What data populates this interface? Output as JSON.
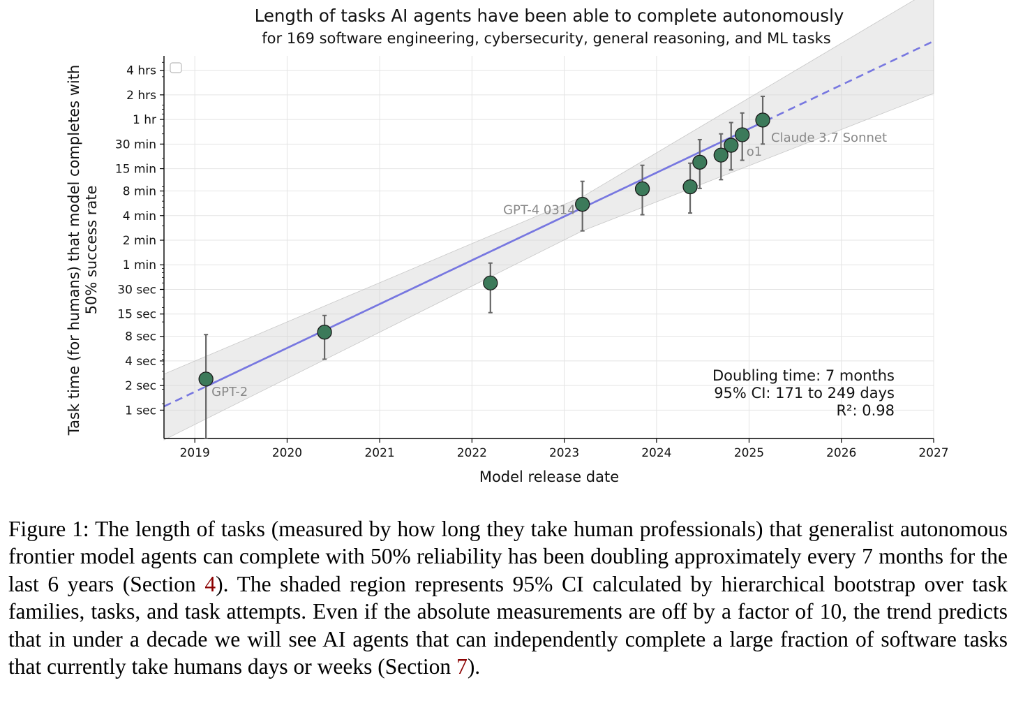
{
  "chart_data": {
    "type": "scatter",
    "title": "Length of tasks AI agents have been able to complete autonomously",
    "subtitle": "for 169 software engineering, cybersecurity, general reasoning, and ML tasks",
    "xlabel": "Model release date",
    "ylabel_line1": "Task time (for humans) that model completes with",
    "ylabel_line2": "50% success rate",
    "y_scale": "log",
    "y_unit": "minutes",
    "xlim": [
      "2018-09-01",
      "2027-01-01"
    ],
    "ylim": [
      0.0075,
      360
    ],
    "grid": true,
    "x_ticks": [
      {
        "value": "2019-01-01",
        "label": "2019"
      },
      {
        "value": "2020-01-01",
        "label": "2020"
      },
      {
        "value": "2021-01-01",
        "label": "2021"
      },
      {
        "value": "2022-01-01",
        "label": "2022"
      },
      {
        "value": "2023-01-01",
        "label": "2023"
      },
      {
        "value": "2024-01-01",
        "label": "2024"
      },
      {
        "value": "2025-01-01",
        "label": "2025"
      },
      {
        "value": "2026-01-01",
        "label": "2026"
      },
      {
        "value": "2027-01-01",
        "label": "2027"
      }
    ],
    "y_ticks": [
      {
        "value": 0.01667,
        "label": "1 sec"
      },
      {
        "value": 0.03333,
        "label": "2 sec"
      },
      {
        "value": 0.06667,
        "label": "4 sec"
      },
      {
        "value": 0.13333,
        "label": "8 sec"
      },
      {
        "value": 0.25,
        "label": "15 sec"
      },
      {
        "value": 0.5,
        "label": "30 sec"
      },
      {
        "value": 1,
        "label": "1 min"
      },
      {
        "value": 2,
        "label": "2 min"
      },
      {
        "value": 4,
        "label": "4 min"
      },
      {
        "value": 8,
        "label": "8 min"
      },
      {
        "value": 15,
        "label": "15 min"
      },
      {
        "value": 30,
        "label": "30 min"
      },
      {
        "value": 60,
        "label": "1 hr"
      },
      {
        "value": 120,
        "label": "2 hrs"
      },
      {
        "value": 240,
        "label": "4 hrs"
      }
    ],
    "points": [
      {
        "date": "2019-02-14",
        "y": 0.04,
        "err_low": 0.0075,
        "err_high": 0.14,
        "label": "GPT-2"
      },
      {
        "date": "2020-05-28",
        "y": 0.15,
        "err_low": 0.07,
        "err_high": 0.24,
        "label": ""
      },
      {
        "date": "2022-03-15",
        "y": 0.6,
        "err_low": 0.26,
        "err_high": 1.05,
        "label": ""
      },
      {
        "date": "2023-03-14",
        "y": 5.5,
        "err_low": 2.6,
        "err_high": 10.5,
        "label": "GPT-4 0314"
      },
      {
        "date": "2023-11-06",
        "y": 8.5,
        "err_low": 4.1,
        "err_high": 16.5,
        "label": ""
      },
      {
        "date": "2024-05-13",
        "y": 9,
        "err_low": 4.3,
        "err_high": 17.5,
        "label": ""
      },
      {
        "date": "2024-06-20",
        "y": 18,
        "err_low": 8.6,
        "err_high": 34,
        "label": ""
      },
      {
        "date": "2024-09-12",
        "y": 22,
        "err_low": 11,
        "err_high": 40,
        "label": ""
      },
      {
        "date": "2024-10-22",
        "y": 29,
        "err_low": 14.5,
        "err_high": 55,
        "label": ""
      },
      {
        "date": "2024-12-05",
        "y": 39,
        "err_low": 19,
        "err_high": 72,
        "label": "o1"
      },
      {
        "date": "2025-02-24",
        "y": 59,
        "err_low": 30,
        "err_high": 115,
        "label": "Claude 3.7 Sonnet"
      }
    ],
    "trend": {
      "line_color": "#7777e0",
      "solid_range": [
        "2019-02-14",
        "2025-02-24"
      ],
      "dashed_range": [
        "2018-09-01",
        "2027-01-01"
      ],
      "points": [
        {
          "date": "2018-09-01",
          "y": 0.0185
        },
        {
          "date": "2027-01-01",
          "y": 545
        }
      ],
      "ci_band": [
        {
          "date": "2018-09-01",
          "low": 0.0072,
          "high": 0.046
        },
        {
          "date": "2023-03-14",
          "low": 2.6,
          "high": 6.8
        },
        {
          "date": "2027-01-01",
          "low": 125,
          "high": 2400
        }
      ]
    },
    "annotation": {
      "line1": "Doubling time: 7 months",
      "line2": "95% CI: 171 to 249 days",
      "line3": "R²: 0.98"
    },
    "marker_color": "#3c7a5a",
    "legend": "top-left (empty)"
  },
  "caption": {
    "prefix": "Figure 1: The length of tasks (measured by how long they take human professionals) that generalist autonomous frontier model agents can complete with 50% reliability has been doubling approx­imately every 7 months for the last 6 years (Section ",
    "ref1": "4",
    "middle": ").  The shaded region represents 95% CI calculated by hierarchical bootstrap over task families, tasks, and task attempts. Even if the absolute measurements are off by a factor of 10, the trend predicts that in under a decade we will see AI agents that can independently complete a large fraction of software tasks that currently take humans days or weeks (Section ",
    "ref2": "7",
    "suffix": ")."
  }
}
